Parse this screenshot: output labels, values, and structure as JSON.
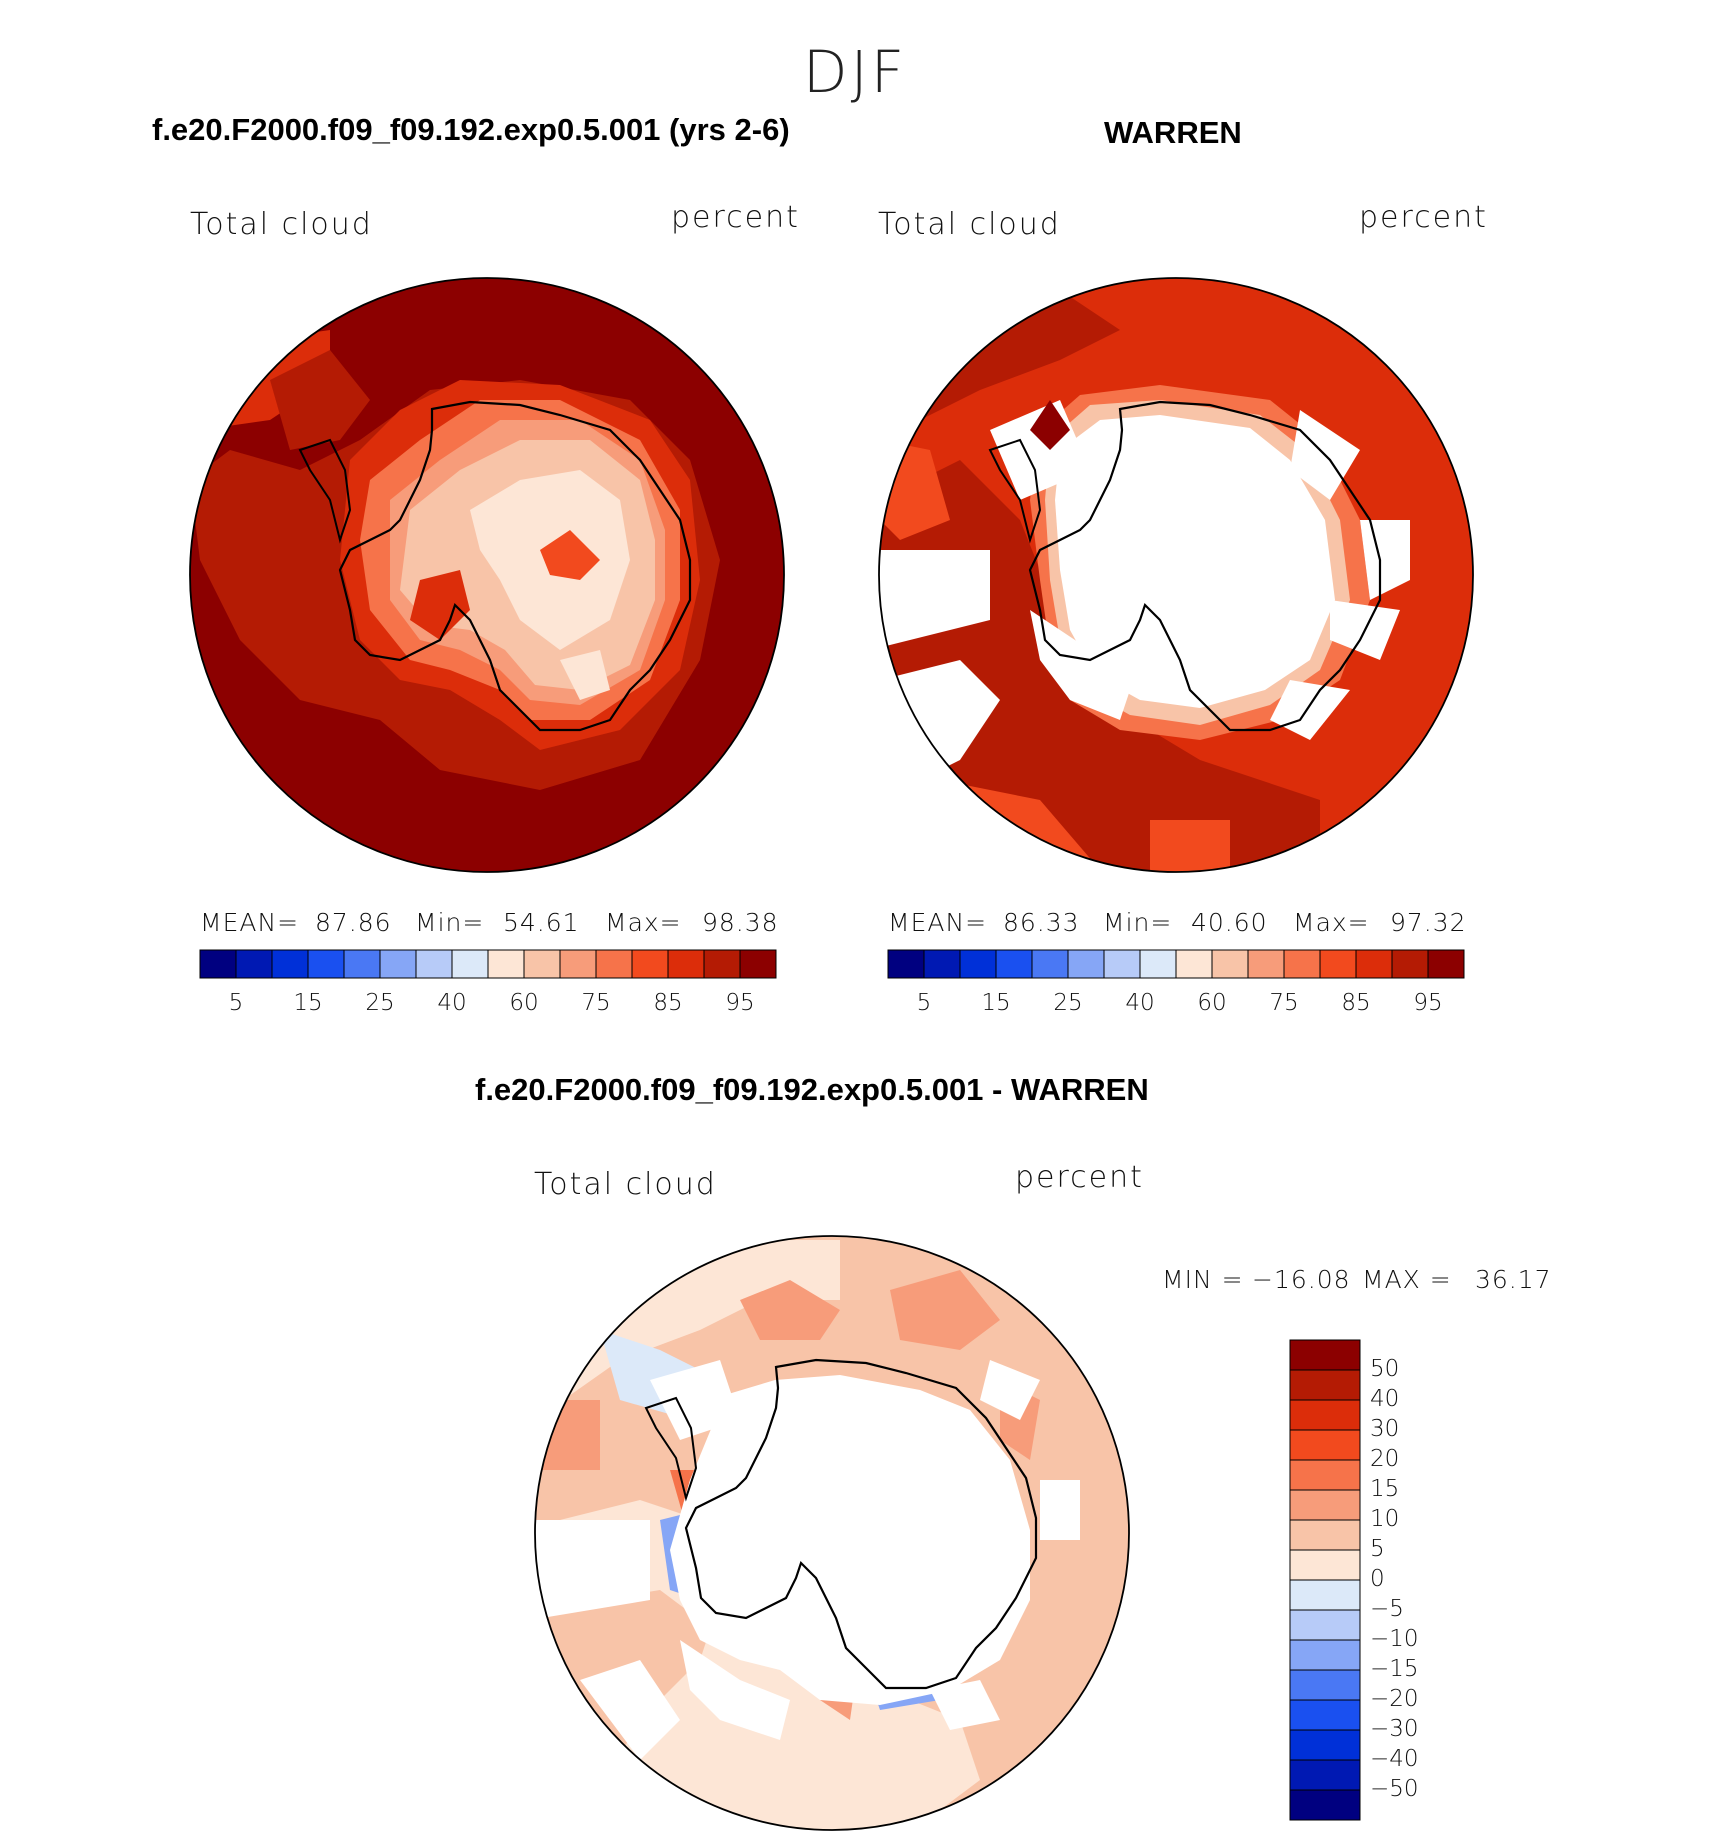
{
  "season": "DJF",
  "panels": [
    {
      "title": "f.e20.F2000.f09_f09.192.exp0.5.001 (yrs 2-6)",
      "variable": "Total cloud",
      "units": "percent",
      "stats": {
        "mean_label": "MEAN=",
        "mean": "87.86",
        "min_label": "Min=",
        "min": "54.61",
        "max_label": "Max=",
        "max": "98.38"
      }
    },
    {
      "title": "WARREN",
      "variable": "Total cloud",
      "units": "percent",
      "stats": {
        "mean_label": "MEAN=",
        "mean": "86.33",
        "min_label": "Min=",
        "min": "40.60",
        "max_label": "Max=",
        "max": "97.32"
      }
    },
    {
      "title": "f.e20.F2000.f09_f09.192.exp0.5.001 - WARREN",
      "variable": "Total cloud",
      "units": "percent",
      "stats": {
        "min_label": "MIN =",
        "min": "−16.08",
        "max_label": "MAX =",
        "max": "36.17"
      }
    }
  ],
  "colorbar_top": {
    "colors": [
      "#000080",
      "#0019b3",
      "#0030d8",
      "#1a50f0",
      "#4a78f4",
      "#86a6f6",
      "#b7cbf8",
      "#dce9f9",
      "#fde6d6",
      "#f8c4a8",
      "#f79c7a",
      "#f6734a",
      "#f24a1e",
      "#dc2d0a",
      "#b41b04",
      "#8c0000"
    ],
    "tick_labels": [
      "5",
      "15",
      "25",
      "40",
      "60",
      "75",
      "85",
      "95"
    ]
  },
  "colorbar_diff": {
    "colors": [
      "#8c0000",
      "#b41b04",
      "#dc2d0a",
      "#f24a1e",
      "#f6734a",
      "#f79c7a",
      "#f8c4a8",
      "#fde6d6",
      "#dce9f9",
      "#b7cbf8",
      "#86a6f6",
      "#4a78f4",
      "#1a50f0",
      "#0030d8",
      "#0019b3",
      "#000080"
    ],
    "tick_labels": [
      "50",
      "40",
      "30",
      "20",
      "15",
      "10",
      "5",
      "0",
      "−5",
      "−10",
      "−15",
      "−20",
      "−30",
      "−40",
      "−50"
    ]
  }
}
